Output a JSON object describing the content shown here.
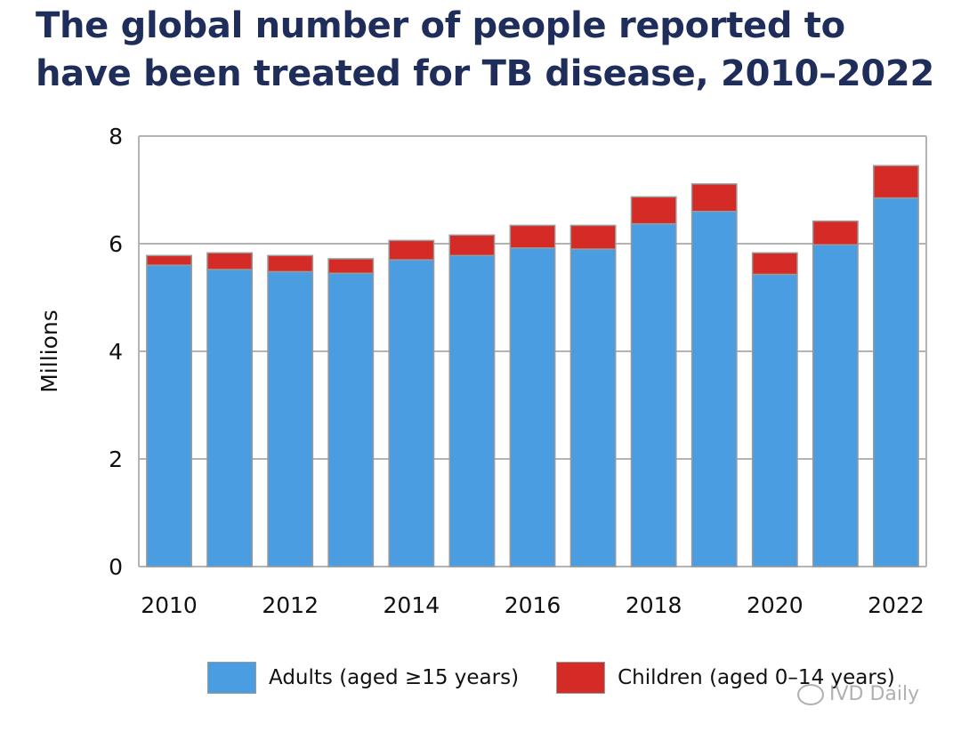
{
  "title": "The global number of people reported to have been treated for TB disease, 2010–2022",
  "colors": {
    "adults": "#4a9de0",
    "children": "#d52b26",
    "grid": "#b4b4b4",
    "title": "#1f2d5a"
  },
  "chart_data": {
    "type": "bar",
    "stacked": true,
    "title": "The global number of people reported to have been treated for TB disease, 2010–2022",
    "xlabel": "",
    "ylabel": "Millions",
    "ylim": [
      0,
      8
    ],
    "yticks": [
      0,
      2,
      4,
      6,
      8
    ],
    "categories": [
      "2010",
      "2011",
      "2012",
      "2013",
      "2014",
      "2015",
      "2016",
      "2017",
      "2018",
      "2019",
      "2020",
      "2021",
      "2022"
    ],
    "xtick_labels": [
      "2010",
      "",
      "2012",
      "",
      "2014",
      "",
      "2016",
      "",
      "2018",
      "",
      "2020",
      "",
      "2022"
    ],
    "series": [
      {
        "name": "Adults (aged ≥15 years)",
        "values": [
          5.6,
          5.52,
          5.48,
          5.45,
          5.7,
          5.78,
          5.92,
          5.9,
          6.37,
          6.6,
          5.43,
          5.98,
          6.85
        ]
      },
      {
        "name": "Children (aged 0–14 years)",
        "values": [
          0.18,
          0.31,
          0.3,
          0.27,
          0.36,
          0.38,
          0.42,
          0.44,
          0.5,
          0.51,
          0.4,
          0.44,
          0.6
        ]
      }
    ],
    "grid": true,
    "legend": "bottom"
  },
  "watermark": {
    "text": "IVD Daily"
  }
}
